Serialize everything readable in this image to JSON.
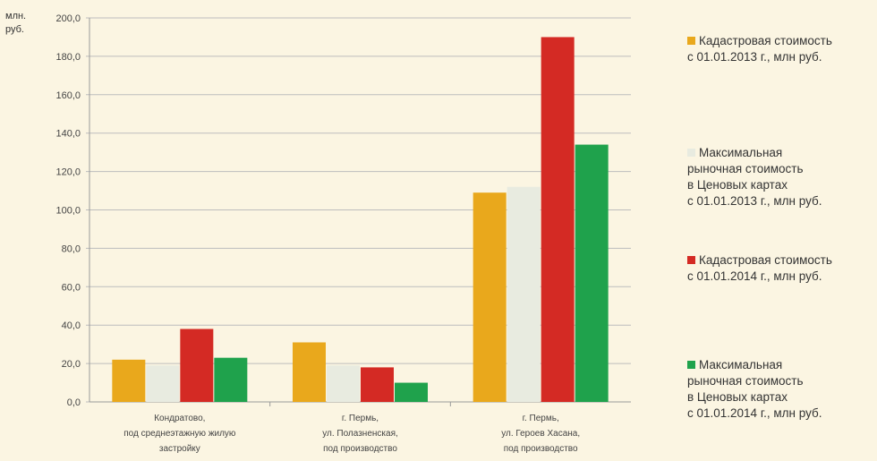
{
  "chart_data": {
    "type": "bar",
    "unit_label": [
      "млн.",
      "руб."
    ],
    "categories": [
      [
        "Кондратово,",
        "под среднеэтажную жилую",
        "застройку"
      ],
      [
        "г. Пермь,",
        "ул. Полазненская,",
        "под производство"
      ],
      [
        "г. Пермь,",
        "ул. Героев Хасана,",
        "под производство"
      ]
    ],
    "ylim": [
      0,
      200
    ],
    "yticks": [
      "0,0",
      "20,0",
      "40,0",
      "60,0",
      "80,0",
      "100,0",
      "120,0",
      "140,0",
      "160,0",
      "180,0",
      "200,0"
    ],
    "grid": true,
    "legend_position": "right",
    "series": [
      {
        "name": [
          "Кадастровая стоимость",
          "с 01.01.2013 г., млн руб."
        ],
        "color": "#e9a81c",
        "values": [
          22,
          31,
          109
        ]
      },
      {
        "name": [
          "Максимальная",
          "рыночная стоимость",
          "в Ценовых картах",
          "с 01.01.2013 г., млн руб."
        ],
        "color": "#e8ebe0",
        "values": [
          19,
          19,
          112
        ]
      },
      {
        "name": [
          "Кадастровая стоимость",
          "с 01.01.2014 г., млн руб."
        ],
        "color": "#d42a24",
        "values": [
          38,
          18,
          190
        ]
      },
      {
        "name": [
          "Максимальная",
          "рыночная стоимость",
          "в Ценовых картах",
          "с 01.01.2014 г., млн руб."
        ],
        "color": "#1fa24c",
        "values": [
          23,
          10,
          134
        ]
      }
    ]
  }
}
